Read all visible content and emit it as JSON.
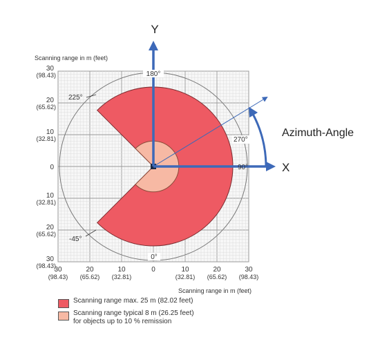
{
  "colors": {
    "max_range": "#ee5a63",
    "typical_range": "#f7b9a4",
    "axis_arrow": "#3d69b8",
    "grid_fine": "#dcdcdc",
    "grid_major": "#9a9a9a"
  },
  "titles": {
    "y_scale": "Scanning range in m (feet)",
    "x_scale": "Scanning range in m (feet)"
  },
  "axes": {
    "y_label": "Y",
    "x_label": "X",
    "azimuth_label": "Azimuth-Angle"
  },
  "y_ticks": [
    {
      "value": 30,
      "m": "30",
      "ft": "(98.43)"
    },
    {
      "value": 20,
      "m": "20",
      "ft": "(65.62)"
    },
    {
      "value": 10,
      "m": "10",
      "ft": "(32.81)"
    },
    {
      "value": 0,
      "m": "0",
      "ft": ""
    },
    {
      "value": -10,
      "m": "10",
      "ft": "(32.81)"
    },
    {
      "value": -20,
      "m": "20",
      "ft": "(65.62)"
    },
    {
      "value": -30,
      "m": "30",
      "ft": "(98.43)"
    }
  ],
  "x_ticks": [
    {
      "value": -30,
      "m": "30",
      "ft": "(98.43)"
    },
    {
      "value": -20,
      "m": "20",
      "ft": "(65.62)"
    },
    {
      "value": -10,
      "m": "10",
      "ft": "(32.81)"
    },
    {
      "value": 0,
      "m": "0",
      "ft": ""
    },
    {
      "value": 10,
      "m": "10",
      "ft": "(32.81)"
    },
    {
      "value": 20,
      "m": "20",
      "ft": "(65.62)"
    },
    {
      "value": 30,
      "m": "30",
      "ft": "(98.43)"
    }
  ],
  "angle_labels": {
    "a180": "180°",
    "a225": "225°",
    "a270": "270°",
    "a90": "90°",
    "a0": "0°",
    "a_neg45": "-45°"
  },
  "legend": [
    {
      "text": "Scanning range max. 25 m (82.02 feet)",
      "color": "#ee5a63"
    },
    {
      "text": "Scanning range typical 8 m (26.25 feet)\nfor objects up to 10 % remission",
      "color": "#f7b9a4"
    }
  ]
}
